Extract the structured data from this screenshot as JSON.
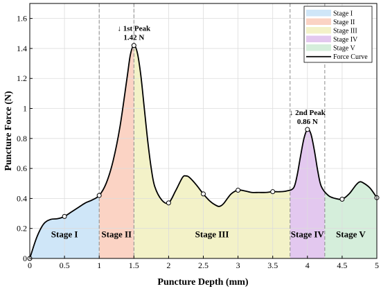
{
  "chart_data": {
    "type": "line",
    "xlabel": "Puncture Depth (mm)",
    "ylabel": "Puncture Force (N)",
    "xlim": [
      0,
      5
    ],
    "ylim": [
      0,
      1.7
    ],
    "x_ticks": [
      0,
      0.5,
      1,
      1.5,
      2,
      2.5,
      3,
      3.5,
      4,
      4.5,
      5
    ],
    "x_tick_labels": [
      "0",
      "0.5",
      "1",
      "1.5",
      "2",
      "2.5",
      "3",
      "3.5",
      "4",
      "4.5",
      "5"
    ],
    "y_ticks": [
      0,
      0.2,
      0.4,
      0.6,
      0.8,
      1.0,
      1.2,
      1.4,
      1.6
    ],
    "y_tick_labels": [
      "0",
      "0.2",
      "0.4",
      "0.6",
      "0.8",
      "1",
      "1.2",
      "1.4",
      "1.6"
    ],
    "grid": true,
    "legend_position": "top-right",
    "stages": [
      {
        "name": "Stage I",
        "x_start": 0,
        "x_end": 1,
        "color": "#cfe6f8"
      },
      {
        "name": "Stage II",
        "x_start": 1,
        "x_end": 1.5,
        "color": "#fbd3c4"
      },
      {
        "name": "Stage III",
        "x_start": 1.5,
        "x_end": 3.75,
        "color": "#f3f2c8"
      },
      {
        "name": "Stage IV",
        "x_start": 3.75,
        "x_end": 4.25,
        "color": "#e3c8ef"
      },
      {
        "name": "Stage V",
        "x_start": 4.25,
        "x_end": 5,
        "color": "#d5eedb"
      }
    ],
    "dashed_boundaries": [
      1,
      1.5,
      3.75,
      4.25
    ],
    "series": [
      {
        "name": "Force Curve",
        "color": "#000000",
        "x": [
          0,
          0.1,
          0.2,
          0.3,
          0.4,
          0.5,
          0.6,
          0.7,
          0.8,
          0.9,
          1.0,
          1.1,
          1.2,
          1.3,
          1.4,
          1.45,
          1.5,
          1.55,
          1.6,
          1.65,
          1.7,
          1.75,
          1.8,
          1.9,
          2.0,
          2.1,
          2.2,
          2.25,
          2.3,
          2.4,
          2.5,
          2.6,
          2.7,
          2.75,
          2.8,
          2.9,
          3.0,
          3.1,
          3.2,
          3.3,
          3.4,
          3.5,
          3.6,
          3.7,
          3.8,
          3.85,
          3.9,
          3.95,
          4.0,
          4.05,
          4.1,
          4.15,
          4.2,
          4.3,
          4.4,
          4.5,
          4.6,
          4.7,
          4.75,
          4.8,
          4.9,
          5.0
        ],
        "y": [
          0,
          0.14,
          0.23,
          0.26,
          0.265,
          0.28,
          0.31,
          0.34,
          0.37,
          0.39,
          0.42,
          0.5,
          0.65,
          0.88,
          1.2,
          1.36,
          1.42,
          1.37,
          1.22,
          1.0,
          0.78,
          0.6,
          0.48,
          0.39,
          0.37,
          0.45,
          0.54,
          0.55,
          0.54,
          0.49,
          0.43,
          0.38,
          0.35,
          0.35,
          0.37,
          0.43,
          0.455,
          0.45,
          0.44,
          0.44,
          0.44,
          0.445,
          0.445,
          0.45,
          0.47,
          0.55,
          0.68,
          0.8,
          0.86,
          0.83,
          0.72,
          0.58,
          0.48,
          0.42,
          0.4,
          0.395,
          0.43,
          0.49,
          0.51,
          0.505,
          0.47,
          0.405
        ]
      }
    ],
    "markers": [
      {
        "x": 0,
        "y": 0
      },
      {
        "x": 0.5,
        "y": 0.28
      },
      {
        "x": 1,
        "y": 0.42
      },
      {
        "x": 1.5,
        "y": 1.42
      },
      {
        "x": 2,
        "y": 0.37
      },
      {
        "x": 2.5,
        "y": 0.43
      },
      {
        "x": 3,
        "y": 0.455
      },
      {
        "x": 3.5,
        "y": 0.445
      },
      {
        "x": 4,
        "y": 0.86
      },
      {
        "x": 4.5,
        "y": 0.395
      },
      {
        "x": 5,
        "y": 0.405
      }
    ],
    "annotations": [
      {
        "x": 1.5,
        "y": 1.42,
        "line1": "↓ 1st Peak",
        "line2": "1.42 N"
      },
      {
        "x": 4.0,
        "y": 0.86,
        "line1": "↓ 2nd Peak",
        "line2": "0.86 N"
      }
    ],
    "stage_labels": [
      {
        "text": "Stage I",
        "x": 0.5,
        "y": 0.14
      },
      {
        "text": "Stage II",
        "x": 1.25,
        "y": 0.14
      },
      {
        "text": "Stage III",
        "x": 2.625,
        "y": 0.14
      },
      {
        "text": "Stage IV",
        "x": 4.0,
        "y": 0.14
      },
      {
        "text": "Stage V",
        "x": 4.625,
        "y": 0.14
      }
    ],
    "legend": [
      {
        "label": "Stage I",
        "kind": "patch",
        "color": "#cfe6f8"
      },
      {
        "label": "Stage II",
        "kind": "patch",
        "color": "#fbd3c4"
      },
      {
        "label": "Stage III",
        "kind": "patch",
        "color": "#f3f2c8"
      },
      {
        "label": "Stage IV",
        "kind": "patch",
        "color": "#e3c8ef"
      },
      {
        "label": "Stage V",
        "kind": "patch",
        "color": "#d5eedb"
      },
      {
        "label": "Force Curve",
        "kind": "line",
        "color": "#000000"
      }
    ]
  }
}
